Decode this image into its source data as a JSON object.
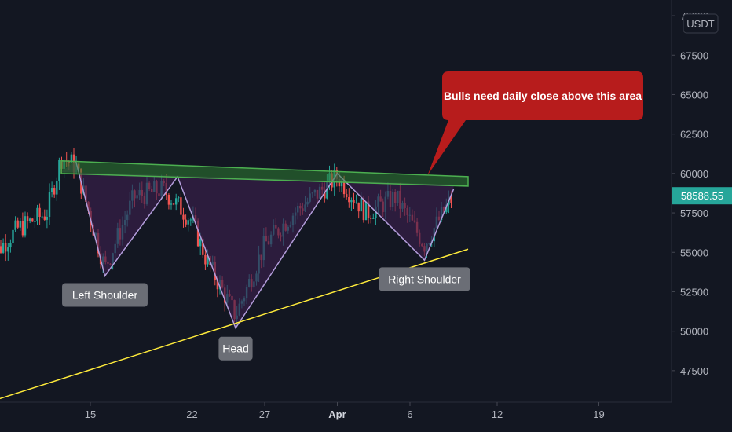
{
  "chart_data": {
    "type": "candlestick",
    "y_unit": "USDT",
    "ylim": [
      45500,
      71000
    ],
    "y_ticks": [
      "47500",
      "50000",
      "52500",
      "55000",
      "57500",
      "60000",
      "62500",
      "65000",
      "67500",
      "70000"
    ],
    "x_ticks": [
      "15",
      "22",
      "27",
      "Apr",
      "6",
      "12",
      "19"
    ],
    "last_price": "58588.55",
    "colors": {
      "up": "#26a69a",
      "down": "#ef5350",
      "background": "#131722",
      "resistance": "#4caf50",
      "trendline": "#ffeb3b",
      "pattern_fill": "#3a1f4d",
      "callout": "#b71c1c",
      "price_tag": "#26a69a"
    },
    "pattern": "Inverse Head and Shoulders",
    "pattern_points": [
      {
        "name": "start",
        "x": "Mar 14",
        "y": 60800
      },
      {
        "name": "Left Shoulder",
        "x": "Mar 16",
        "y": 53500
      },
      {
        "name": "neck-1",
        "x": "Mar 21",
        "y": 59800
      },
      {
        "name": "Head",
        "x": "Mar 25",
        "y": 50200
      },
      {
        "name": "neck-2",
        "x": "Apr 1",
        "y": 60000
      },
      {
        "name": "Right Shoulder",
        "x": "Apr 7",
        "y": 54500
      },
      {
        "name": "end",
        "x": "Apr 9",
        "y": 59000
      }
    ],
    "resistance_zone": {
      "x_from": "Mar 13",
      "x_to": "Apr 10",
      "y_top_start": 60800,
      "y_bottom_start": 60000,
      "y_top_end": 59800,
      "y_bottom_end": 59200
    },
    "trendline": {
      "from": {
        "x": "Mar 8",
        "y": 45500
      },
      "to": {
        "x": "Apr 10",
        "y": 55200
      }
    },
    "annotations": [
      {
        "text": "Left Shoulder",
        "x": "Mar 16",
        "y": 52300
      },
      {
        "text": "Head",
        "x": "Mar 25",
        "y": 48900
      },
      {
        "text": "Right Shoulder",
        "x": "Apr 7",
        "y": 53300
      }
    ],
    "callout": {
      "text": "Bulls need daily close above this area"
    }
  }
}
